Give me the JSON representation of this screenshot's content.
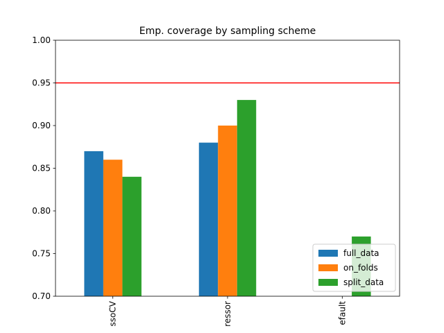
{
  "chart_data": {
    "type": "bar",
    "title": "Emp. coverage by sampling scheme",
    "xlabel": "",
    "ylabel": "",
    "categories": [
      "ssoCV",
      "ressor",
      "efault"
    ],
    "series": [
      {
        "name": "full_data",
        "color": "#1f77b4",
        "values": [
          0.87,
          0.88,
          null
        ]
      },
      {
        "name": "on_folds",
        "color": "#ff7f0e",
        "values": [
          0.86,
          0.9,
          null
        ]
      },
      {
        "name": "split_data",
        "color": "#2ca02c",
        "values": [
          0.84,
          0.93,
          0.77
        ]
      }
    ],
    "ylim": [
      0.7,
      1.0
    ],
    "yticks": [
      "0.70",
      "0.75",
      "0.80",
      "0.85",
      "0.90",
      "0.95",
      "1.00"
    ],
    "reference_line": {
      "y": 0.95,
      "color": "#ff0000"
    },
    "grid": false,
    "legend_position": "lower-right"
  }
}
